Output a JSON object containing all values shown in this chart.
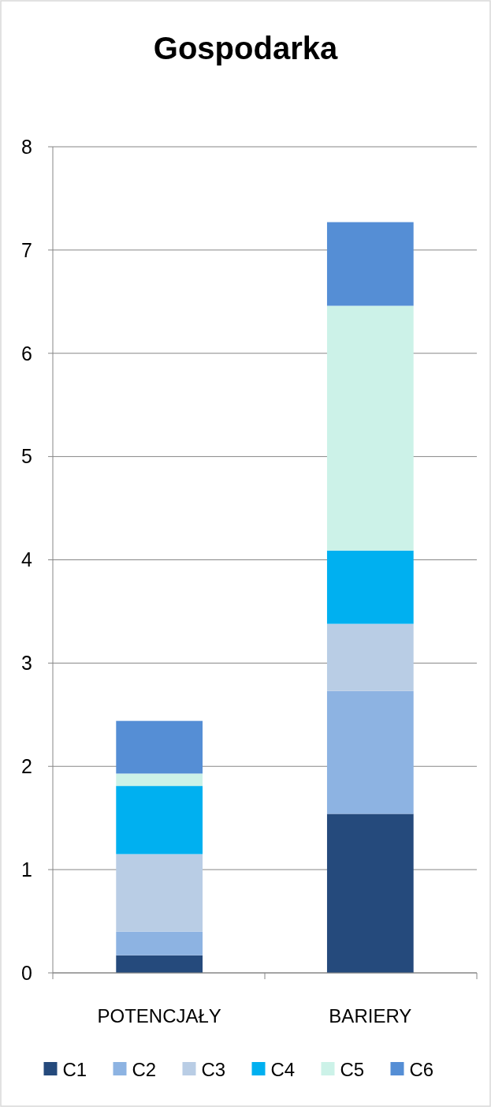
{
  "chart_data": {
    "type": "bar",
    "title": "Gospodarka",
    "categories": [
      "POTENCJAŁY",
      "BARIERY"
    ],
    "stacked": true,
    "series": [
      {
        "name": "C1",
        "color": "#254a7c",
        "values": [
          0.17,
          1.54
        ]
      },
      {
        "name": "C2",
        "color": "#8db3e2",
        "values": [
          0.23,
          1.19
        ]
      },
      {
        "name": "C3",
        "color": "#b9cde5",
        "values": [
          0.75,
          0.65
        ]
      },
      {
        "name": "C4",
        "color": "#00b0f0",
        "values": [
          0.66,
          0.71
        ]
      },
      {
        "name": "C5",
        "color": "#ccf2e8",
        "values": [
          0.12,
          2.37
        ]
      },
      {
        "name": "C6",
        "color": "#558ed5",
        "values": [
          0.51,
          0.81
        ]
      }
    ],
    "ylim": [
      0,
      8
    ],
    "yticks": [
      0,
      1,
      2,
      3,
      4,
      5,
      6,
      7,
      8
    ],
    "grid": "y",
    "legend": "bottom"
  }
}
